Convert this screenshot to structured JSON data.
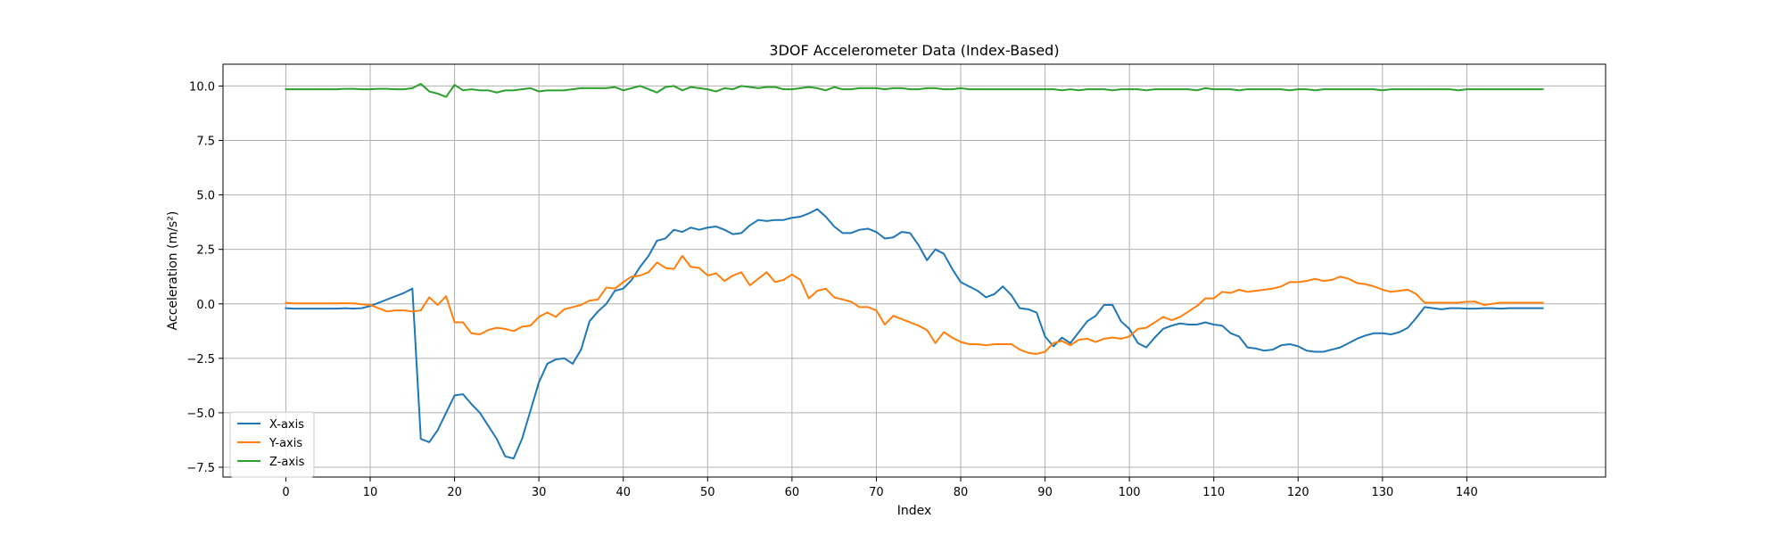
{
  "chart_data": {
    "type": "line",
    "title": "3DOF Accelerometer Data (Index-Based)",
    "xlabel": "Index",
    "ylabel": "Acceleration (m/s²)",
    "xlim": [
      -7.45,
      156.45
    ],
    "ylim": [
      -7.95,
      11.0
    ],
    "x_ticks": [
      0,
      10,
      20,
      30,
      40,
      50,
      60,
      70,
      80,
      90,
      100,
      110,
      120,
      130,
      140
    ],
    "y_ticks": [
      -7.5,
      -5.0,
      -2.5,
      0.0,
      2.5,
      5.0,
      7.5,
      10.0
    ],
    "y_tick_labels": [
      "−7.5",
      "−5.0",
      "−2.5",
      "0.0",
      "2.5",
      "5.0",
      "7.5",
      "10.0"
    ],
    "grid": true,
    "legend_position": "lower-left",
    "series": [
      {
        "name": "X-axis",
        "color": "#1f77b4",
        "values": [
          -0.2,
          -0.22,
          -0.22,
          -0.22,
          -0.22,
          -0.22,
          -0.22,
          -0.2,
          -0.22,
          -0.2,
          -0.1,
          0.05,
          0.2,
          0.35,
          0.5,
          0.7,
          -6.2,
          -6.35,
          -5.8,
          -5.0,
          -4.2,
          -4.15,
          -4.6,
          -5.0,
          -5.6,
          -6.2,
          -7.0,
          -7.1,
          -6.2,
          -4.9,
          -3.6,
          -2.75,
          -2.55,
          -2.5,
          -2.75,
          -2.1,
          -0.8,
          -0.35,
          0.0,
          0.6,
          0.7,
          1.1,
          1.7,
          2.2,
          2.9,
          3.0,
          3.4,
          3.3,
          3.5,
          3.4,
          3.5,
          3.55,
          3.4,
          3.2,
          3.25,
          3.6,
          3.85,
          3.8,
          3.85,
          3.85,
          3.95,
          4.0,
          4.15,
          4.35,
          4.0,
          3.55,
          3.25,
          3.25,
          3.4,
          3.45,
          3.3,
          3.0,
          3.05,
          3.3,
          3.25,
          2.7,
          2.0,
          2.5,
          2.3,
          1.6,
          1.0,
          0.8,
          0.6,
          0.3,
          0.45,
          0.8,
          0.4,
          -0.2,
          -0.25,
          -0.4,
          -1.5,
          -1.95,
          -1.55,
          -1.8,
          -1.3,
          -0.8,
          -0.55,
          -0.05,
          -0.05,
          -0.8,
          -1.15,
          -1.8,
          -2.0,
          -1.55,
          -1.15,
          -1.0,
          -0.9,
          -0.95,
          -0.95,
          -0.85,
          -0.95,
          -1.0,
          -1.35,
          -1.5,
          -2.0,
          -2.05,
          -2.15,
          -2.1,
          -1.9,
          -1.85,
          -1.95,
          -2.15,
          -2.2,
          -2.2,
          -2.1,
          -2.0,
          -1.8,
          -1.6,
          -1.45,
          -1.35,
          -1.35,
          -1.4,
          -1.3,
          -1.1,
          -0.65,
          -0.15,
          -0.2,
          -0.25,
          -0.2,
          -0.2,
          -0.22,
          -0.22,
          -0.2,
          -0.2,
          -0.22,
          -0.2,
          -0.2,
          -0.2,
          -0.2,
          -0.2
        ]
      },
      {
        "name": "Y-axis",
        "color": "#ff7f0e",
        "values": [
          0.05,
          0.02,
          0.02,
          0.02,
          0.02,
          0.02,
          0.02,
          0.03,
          0.02,
          -0.02,
          -0.05,
          -0.2,
          -0.35,
          -0.3,
          -0.3,
          -0.35,
          -0.3,
          0.3,
          -0.05,
          0.35,
          -0.85,
          -0.85,
          -1.35,
          -1.4,
          -1.2,
          -1.1,
          -1.15,
          -1.25,
          -1.05,
          -1.0,
          -0.6,
          -0.4,
          -0.6,
          -0.25,
          -0.15,
          -0.05,
          0.15,
          0.2,
          0.75,
          0.7,
          1.0,
          1.25,
          1.3,
          1.45,
          1.9,
          1.65,
          1.6,
          2.2,
          1.7,
          1.65,
          1.3,
          1.4,
          1.05,
          1.3,
          1.45,
          0.85,
          1.15,
          1.45,
          1.0,
          1.1,
          1.35,
          1.1,
          0.25,
          0.6,
          0.7,
          0.3,
          0.2,
          0.1,
          -0.15,
          -0.15,
          -0.3,
          -0.95,
          -0.55,
          -0.7,
          -0.85,
          -1.0,
          -1.2,
          -1.8,
          -1.3,
          -1.55,
          -1.75,
          -1.85,
          -1.85,
          -1.9,
          -1.85,
          -1.85,
          -1.85,
          -2.1,
          -2.25,
          -2.3,
          -2.2,
          -1.8,
          -1.7,
          -1.9,
          -1.65,
          -1.6,
          -1.75,
          -1.6,
          -1.55,
          -1.6,
          -1.5,
          -1.15,
          -1.1,
          -0.85,
          -0.6,
          -0.75,
          -0.6,
          -0.35,
          -0.1,
          0.25,
          0.25,
          0.55,
          0.5,
          0.65,
          0.55,
          0.6,
          0.65,
          0.7,
          0.8,
          1.0,
          1.0,
          1.05,
          1.15,
          1.05,
          1.1,
          1.25,
          1.15,
          0.95,
          0.9,
          0.8,
          0.65,
          0.55,
          0.6,
          0.65,
          0.45,
          0.05,
          0.05,
          0.05,
          0.05,
          0.05,
          0.1,
          0.1,
          -0.05,
          0.0,
          0.05,
          0.05,
          0.05,
          0.05,
          0.05,
          0.05
        ]
      },
      {
        "name": "Z-axis",
        "color": "#2ca02c",
        "values": [
          9.85,
          9.85,
          9.85,
          9.85,
          9.85,
          9.85,
          9.85,
          9.87,
          9.87,
          9.85,
          9.85,
          9.87,
          9.87,
          9.85,
          9.85,
          9.9,
          10.1,
          9.75,
          9.65,
          9.5,
          10.05,
          9.8,
          9.85,
          9.8,
          9.8,
          9.7,
          9.8,
          9.8,
          9.85,
          9.9,
          9.75,
          9.8,
          9.8,
          9.8,
          9.85,
          9.9,
          9.9,
          9.9,
          9.9,
          9.95,
          9.8,
          9.9,
          10.0,
          9.85,
          9.7,
          9.95,
          10.0,
          9.8,
          9.95,
          9.9,
          9.85,
          9.75,
          9.9,
          9.85,
          10.0,
          9.95,
          9.9,
          9.95,
          9.95,
          9.85,
          9.85,
          9.9,
          9.95,
          9.9,
          9.8,
          9.95,
          9.85,
          9.85,
          9.9,
          9.9,
          9.9,
          9.85,
          9.9,
          9.9,
          9.85,
          9.85,
          9.9,
          9.9,
          9.85,
          9.85,
          9.9,
          9.85,
          9.85,
          9.85,
          9.85,
          9.85,
          9.85,
          9.85,
          9.85,
          9.85,
          9.85,
          9.85,
          9.8,
          9.85,
          9.8,
          9.85,
          9.85,
          9.85,
          9.8,
          9.85,
          9.85,
          9.85,
          9.8,
          9.85,
          9.85,
          9.85,
          9.85,
          9.85,
          9.8,
          9.9,
          9.85,
          9.85,
          9.85,
          9.8,
          9.85,
          9.85,
          9.85,
          9.85,
          9.85,
          9.8,
          9.85,
          9.85,
          9.8,
          9.85,
          9.85,
          9.85,
          9.85,
          9.85,
          9.85,
          9.85,
          9.8,
          9.85,
          9.85,
          9.85,
          9.85,
          9.85,
          9.85,
          9.85,
          9.85,
          9.8,
          9.85,
          9.85,
          9.85,
          9.85,
          9.85,
          9.85,
          9.85,
          9.85,
          9.85,
          9.85
        ]
      }
    ]
  }
}
